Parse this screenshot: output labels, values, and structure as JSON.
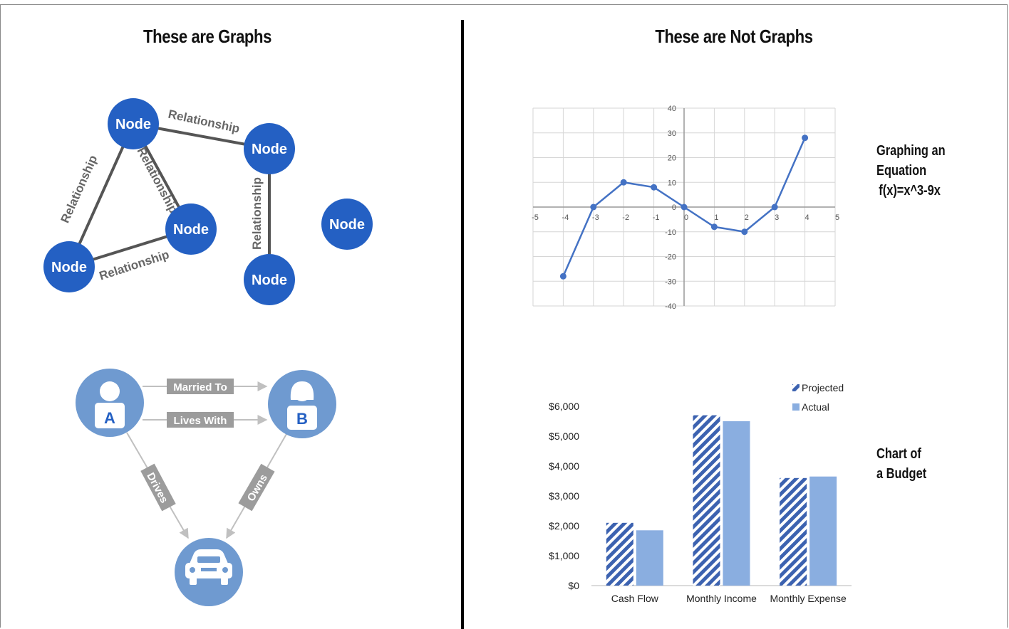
{
  "left_title": "These are Graphs",
  "right_title": "These are Not Graphs",
  "graph_diagram": {
    "node_label": "Node",
    "edge_label": "Relationship",
    "nodes": [
      "Node",
      "Node",
      "Node",
      "Node",
      "Node",
      "Node"
    ],
    "edges": [
      "Relationship",
      "Relationship",
      "Relationship",
      "Relationship"
    ]
  },
  "social_diagram": {
    "person_a": "A",
    "person_b": "B",
    "married_to": "Married To",
    "lives_with": "Lives With",
    "drives": "Drives",
    "owns": "Owns"
  },
  "equation_label": {
    "line1": "Graphing an",
    "line2": "Equation",
    "line3": "f(x)=x^3-9x"
  },
  "budget_label": {
    "line1": "Chart of",
    "line2": "a Budget"
  },
  "colors": {
    "node_blue": "#2460C3",
    "light_blue": "#6F9AD0",
    "bar_blue": "#8AAEE0",
    "stripe_blue": "#3C62B0",
    "edge_gray": "#555555"
  },
  "chart_data": [
    {
      "type": "line",
      "title": "",
      "x": [
        -4,
        -3,
        -2,
        -1,
        0,
        1,
        2,
        3,
        4
      ],
      "series": [
        {
          "values": [
            -28,
            0,
            10,
            8,
            0,
            -8,
            -10,
            0,
            28
          ]
        }
      ],
      "xlim": [
        -5,
        5
      ],
      "ylim": [
        -40,
        40
      ],
      "xticks": [
        "-5",
        "-4",
        "-3",
        "-2",
        "-1",
        "0",
        "1",
        "2",
        "3",
        "4",
        "5"
      ],
      "yticks": [
        "40",
        "30",
        "20",
        "10",
        "0",
        "-10",
        "-20",
        "-30",
        "-40"
      ],
      "grid": true
    },
    {
      "type": "bar",
      "title": "",
      "categories": [
        "Cash Flow",
        "Monthly Income",
        "Monthly Expense"
      ],
      "series": [
        {
          "name": "Projected",
          "values": [
            2100,
            5700,
            3600
          ]
        },
        {
          "name": "Actual",
          "values": [
            1850,
            5500,
            3650
          ]
        }
      ],
      "ylim": [
        0,
        6000
      ],
      "yticks": [
        "$6,000",
        "$5,000",
        "$4,000",
        "$3,000",
        "$2,000",
        "$1,000",
        "$0"
      ],
      "legend": "top-right"
    }
  ]
}
